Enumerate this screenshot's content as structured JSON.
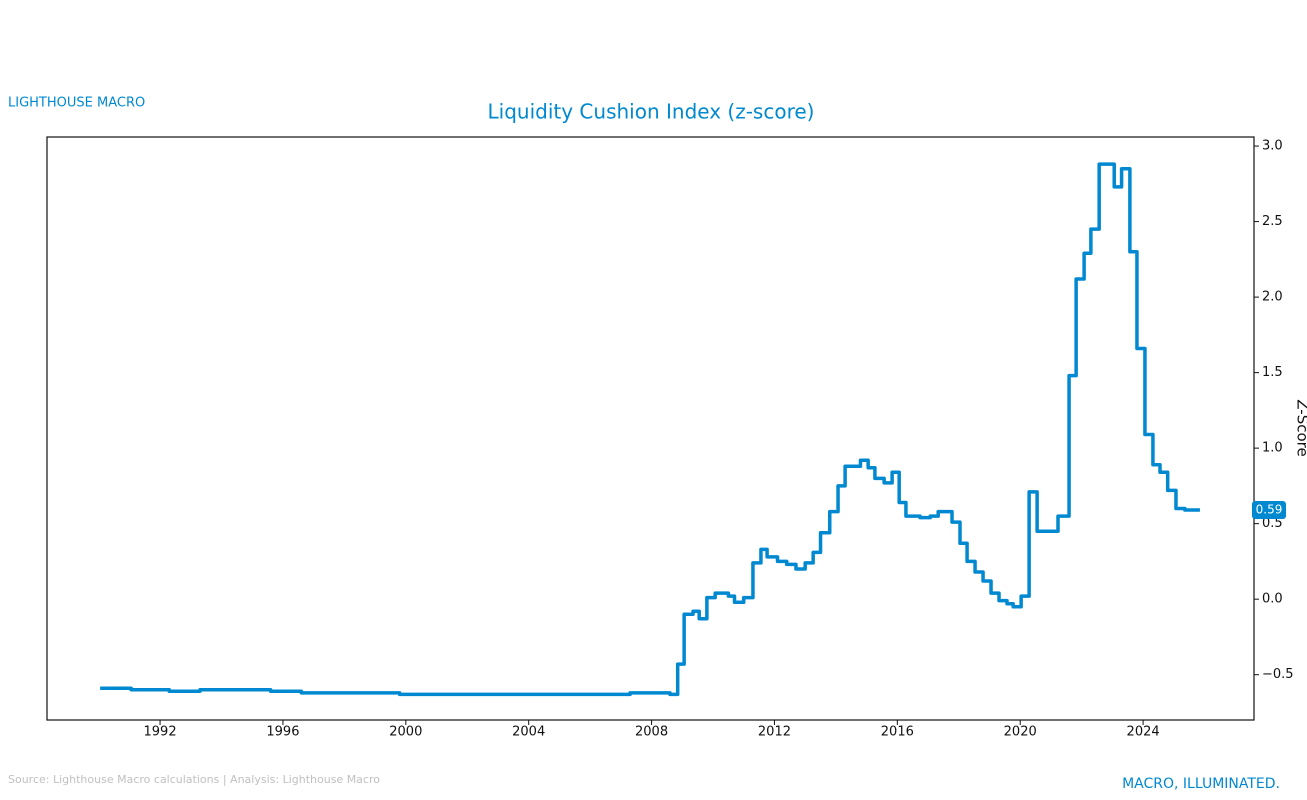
{
  "brand": "LIGHTHOUSE MACRO",
  "tagline": "MACRO, ILLUMINATED.",
  "source": "Source: Lighthouse Macro calculations | Analysis: Lighthouse Macro",
  "chart_data": {
    "type": "line",
    "title": "Liquidity Cushion Index (z-score)",
    "y_label": "Z-Score",
    "step": true,
    "end_label": true,
    "xlim": [
      1988.32,
      2027.61
    ],
    "ylim": [
      -0.8,
      3.06
    ],
    "xticks": [
      1992,
      1996,
      2000,
      2004,
      2008,
      2012,
      2016,
      2020,
      2024
    ],
    "yticks": [
      {
        "value": -0.5,
        "label": "−0.5"
      },
      {
        "value": 0,
        "label": "0.0"
      },
      0.5,
      {
        "value": 1,
        "label": "1.0"
      },
      1.5,
      {
        "value": 2,
        "label": "2.0"
      },
      2.5,
      {
        "value": 3,
        "label": "3.0"
      }
    ],
    "series": [
      {
        "name": "Liquidity Cushion Index",
        "color": "#0089d1",
        "x": [
          1990.05,
          1991.06,
          1992.3,
          1993.3,
          1995.6,
          1996.6,
          1999.8,
          2007.3,
          2008.6,
          2008.85,
          2009.06,
          2009.35,
          2009.55,
          2009.8,
          2010.07,
          2010.5,
          2010.7,
          2011.0,
          2011.3,
          2011.56,
          2011.76,
          2012.1,
          2012.4,
          2012.7,
          2013.0,
          2013.26,
          2013.5,
          2013.8,
          2014.07,
          2014.3,
          2014.8,
          2015.05,
          2015.27,
          2015.57,
          2015.83,
          2016.06,
          2016.28,
          2016.74,
          2017.07,
          2017.33,
          2017.78,
          2018.04,
          2018.27,
          2018.53,
          2018.79,
          2019.05,
          2019.31,
          2019.57,
          2019.77,
          2020.03,
          2020.29,
          2020.55,
          2021.23,
          2021.59,
          2021.82,
          2022.08,
          2022.3,
          2022.57,
          2023.06,
          2023.3,
          2023.57,
          2023.8,
          2024.06,
          2024.32,
          2024.55,
          2024.8,
          2025.07,
          2025.36,
          2025.85
        ],
        "values": [
          -0.59,
          -0.6,
          -0.61,
          -0.6,
          -0.61,
          -0.62,
          -0.63,
          -0.62,
          -0.63,
          -0.43,
          -0.1,
          -0.08,
          -0.13,
          0.01,
          0.04,
          0.02,
          -0.02,
          0.01,
          0.24,
          0.33,
          0.28,
          0.25,
          0.23,
          0.2,
          0.24,
          0.31,
          0.44,
          0.58,
          0.75,
          0.88,
          0.92,
          0.87,
          0.8,
          0.77,
          0.84,
          0.64,
          0.55,
          0.54,
          0.55,
          0.58,
          0.51,
          0.37,
          0.25,
          0.18,
          0.12,
          0.04,
          -0.01,
          -0.03,
          -0.05,
          0.02,
          0.71,
          0.45,
          0.55,
          1.48,
          2.12,
          2.29,
          2.45,
          2.88,
          2.73,
          2.85,
          2.3,
          1.66,
          1.09,
          0.89,
          0.84,
          0.72,
          0.6,
          0.59,
          0.59
        ]
      }
    ]
  }
}
